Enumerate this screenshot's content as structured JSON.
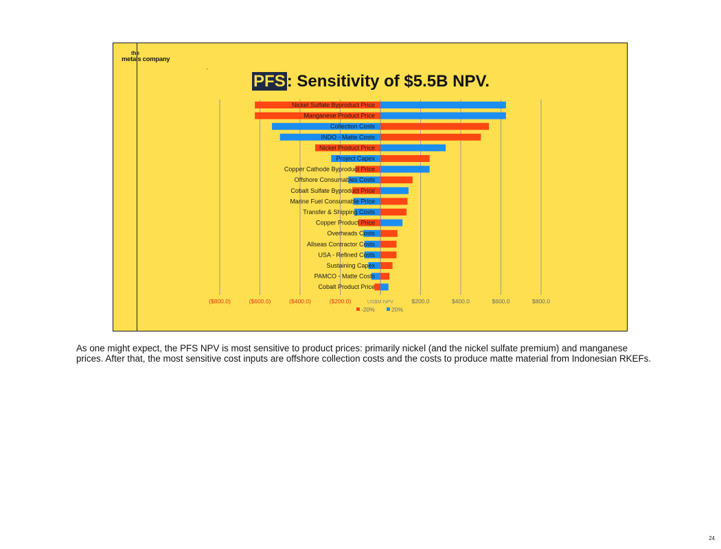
{
  "logo": {
    "line1": "the",
    "line2": "metals company"
  },
  "title": {
    "highlight": "PFS",
    "rest": ": Sensitivity of $5.5B NPV."
  },
  "caption": "As one might expect, the PFS NPV is most sensitive to product prices: primarily nickel (and the nickel sulfate premium) and manganese prices.  After that, the most sensitive cost inputs are offshore collection costs and the costs to produce matte material from Indonesian RKEFs.",
  "page_number": "24",
  "colors": {
    "neg20": "#FF4713",
    "pos20": "#1C8EF0",
    "background": "#FDDF4F",
    "grid": "#9a9a9a",
    "neg_tick": "#E8341C",
    "pos_tick": "#6a6a6a"
  },
  "chart_data": {
    "type": "bar",
    "orientation": "horizontal",
    "subtype": "tornado",
    "title": "PFS: Sensitivity of $5.5B NPV.",
    "xlabel": "US$M NPV",
    "xlim": [
      -800,
      800
    ],
    "xticks": [
      {
        "value": -800,
        "label": "($800.0)"
      },
      {
        "value": -600,
        "label": "($600.0)"
      },
      {
        "value": -400,
        "label": "($400.0)"
      },
      {
        "value": -200,
        "label": "($200.0)"
      },
      {
        "value": 0,
        "label": "US$M NPV"
      },
      {
        "value": 200,
        "label": "$200.0"
      },
      {
        "value": 400,
        "label": "$400.0"
      },
      {
        "value": 600,
        "label": "$600.0"
      },
      {
        "value": 800,
        "label": "$800.0"
      }
    ],
    "categories": [
      "Nickel Sulfate Byproduct Price",
      "Manganese Product Price",
      "Collection Costs",
      "INDO - Matte Costs",
      "Nickel Product Price",
      "Project Capex",
      "Copper Cathode Byproduct Price",
      "Offshore Consumables Costs",
      "Cobalt Sulfate Byproduct Price",
      "Marine Fuel Consumable Price",
      "Transfer & Shipping Costs",
      "Copper Product Price",
      "Overheads Costs",
      "Allseas Contractor Costs",
      "USA - Refined Costs",
      "Sustaining Capex",
      "PAMCO - Matte Costs",
      "Cobalt Product Price"
    ],
    "series": [
      {
        "name": "-20%",
        "color": "#FF4713",
        "values": [
          -625,
          -625,
          540,
          500,
          -325,
          245,
          -125,
          160,
          -140,
          135,
          130,
          -110,
          85,
          80,
          80,
          60,
          45,
          -30
        ]
      },
      {
        "name": "20%",
        "color": "#1C8EF0",
        "values": [
          625,
          625,
          -540,
          -500,
          325,
          -245,
          245,
          -160,
          140,
          -135,
          -130,
          110,
          -85,
          -80,
          -80,
          -60,
          -45,
          40
        ]
      }
    ],
    "legend": {
      "position": "bottom"
    },
    "grid": true
  }
}
